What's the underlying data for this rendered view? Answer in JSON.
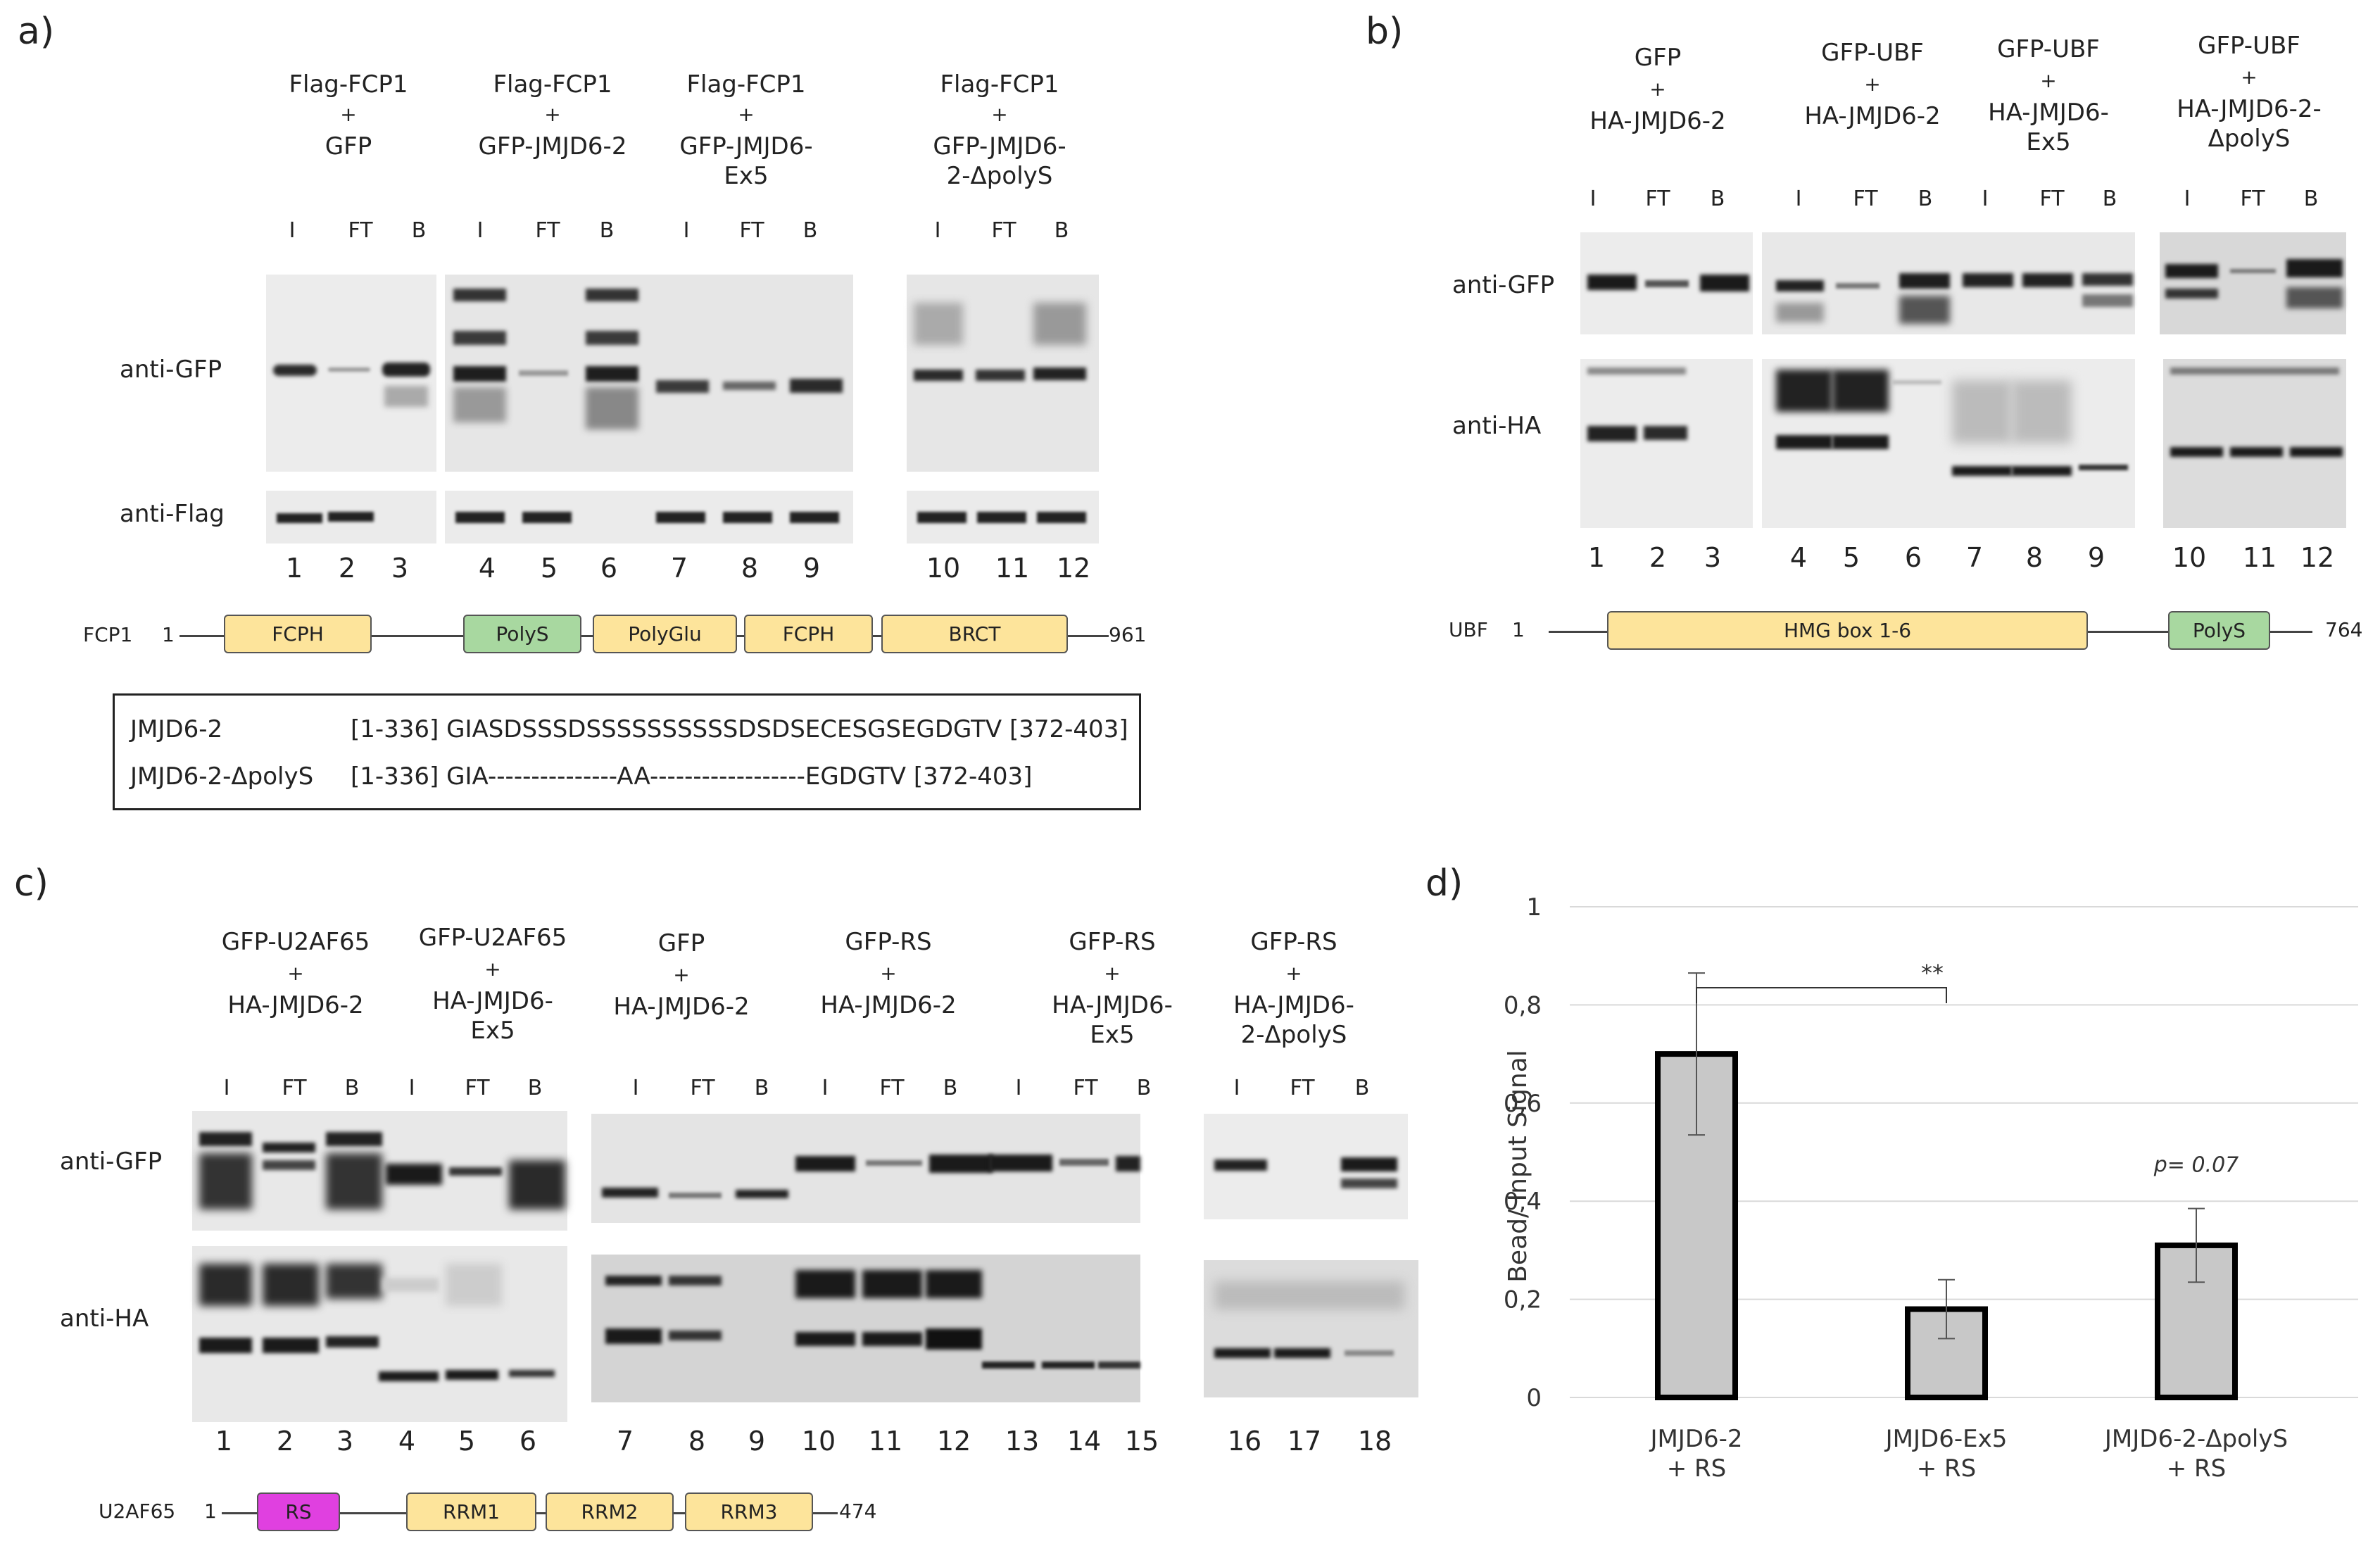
{
  "panels": {
    "a": "a)",
    "b": "b)",
    "c": "c)",
    "d": "d)"
  },
  "common": {
    "plus": "+",
    "lane_I": "I",
    "lane_FT": "FT",
    "lane_B": "B",
    "anti_gfp": "anti-GFP",
    "anti_flag": "anti-Flag",
    "anti_ha": "anti-HA"
  },
  "panel_a": {
    "conditions": [
      {
        "top": "Flag-FCP1",
        "bottom": [
          "GFP"
        ]
      },
      {
        "top": "Flag-FCP1",
        "bottom": [
          "GFP-JMJD6-2"
        ]
      },
      {
        "top": "Flag-FCP1",
        "bottom": [
          "GFP-JMJD6-",
          "Ex5"
        ]
      },
      {
        "top": "Flag-FCP1",
        "bottom": [
          "GFP-JMJD6-",
          "2-ΔpolyS"
        ]
      }
    ],
    "lanes": [
      "1",
      "2",
      "3",
      "4",
      "5",
      "6",
      "7",
      "8",
      "9",
      "10",
      "11",
      "12"
    ],
    "domain_map": {
      "protein": "FCP1",
      "start": "1",
      "end": "961",
      "domains": [
        "FCPH",
        "PolyS",
        "PolyGlu",
        "FCPH",
        "BRCT"
      ]
    },
    "sequence_box": [
      {
        "name": "JMJD6-2",
        "seq": "[1-336] GIASDSSSDSSSSSSSSSSDSDSECESGSEGDGTV [372-403]"
      },
      {
        "name": "JMJD6-2-ΔpolyS",
        "seq": "[1-336] GIA---------------AA------------------EGDGTV [372-403]"
      }
    ]
  },
  "panel_b": {
    "conditions": [
      {
        "top": "GFP",
        "bottom": [
          "HA-JMJD6-2"
        ]
      },
      {
        "top": "GFP-UBF",
        "bottom": [
          "HA-JMJD6-2"
        ]
      },
      {
        "top": "GFP-UBF",
        "bottom": [
          "HA-JMJD6-",
          "Ex5"
        ]
      },
      {
        "top": "GFP-UBF",
        "bottom": [
          "HA-JMJD6-2-",
          "ΔpolyS"
        ]
      }
    ],
    "lanes": [
      "1",
      "2",
      "3",
      "4",
      "5",
      "6",
      "7",
      "8",
      "9",
      "10",
      "11",
      "12"
    ],
    "domain_map": {
      "protein": "UBF",
      "start": "1",
      "end": "764",
      "domains": [
        "HMG box 1-6",
        "PolyS"
      ]
    }
  },
  "panel_c": {
    "conditions": [
      {
        "top": "GFP-U2AF65",
        "bottom": [
          "HA-JMJD6-2"
        ]
      },
      {
        "top": "GFP-U2AF65",
        "bottom": [
          "HA-JMJD6-",
          "Ex5"
        ]
      },
      {
        "top": "GFP",
        "bottom": [
          "HA-JMJD6-2"
        ]
      },
      {
        "top": "GFP-RS",
        "bottom": [
          "HA-JMJD6-2"
        ]
      },
      {
        "top": "GFP-RS",
        "bottom": [
          "HA-JMJD6-",
          "Ex5"
        ]
      },
      {
        "top": "GFP-RS",
        "bottom": [
          "HA-JMJD6-",
          "2-ΔpolyS"
        ]
      }
    ],
    "lanes": [
      "1",
      "2",
      "3",
      "4",
      "5",
      "6",
      "7",
      "8",
      "9",
      "10",
      "11",
      "12",
      "13",
      "14",
      "15",
      "16",
      "17",
      "18"
    ],
    "domain_map": {
      "protein": "U2AF65",
      "start": "1",
      "end": "474",
      "domains": [
        "RS",
        "RRM1",
        "RRM2",
        "RRM3"
      ]
    }
  },
  "chart_data": {
    "type": "bar",
    "categories": [
      [
        "JMJD6-2",
        "+ RS"
      ],
      [
        "JMJD6-Ex5",
        "+ RS"
      ],
      [
        "JMJD6-2-ΔpolyS",
        "+ RS"
      ]
    ],
    "values": [
      0.7,
      0.18,
      0.31
    ],
    "errors": [
      0.165,
      0.06,
      0.075
    ],
    "ylabel": "Bead/ Input Signal",
    "ylim": [
      0,
      1
    ],
    "yticks": [
      "0",
      "0,2",
      "0,4",
      "0,6",
      "0,8",
      "1"
    ],
    "grid": true,
    "annotations": {
      "significance": "**",
      "p_value": "p= 0.07"
    },
    "colors": {
      "bar": "#c8c8c8",
      "edge": "#000000"
    }
  },
  "colors": {
    "domain_yellow": "#fde49b",
    "domain_green": "#a8d8a0",
    "domain_magenta": "#e040e0",
    "blot_bg": "#ebebeb"
  }
}
